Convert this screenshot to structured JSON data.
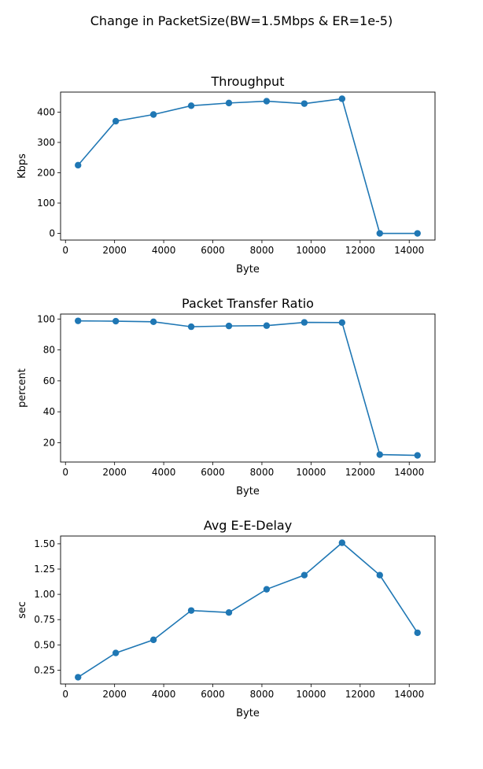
{
  "figure": {
    "title": "Change in PacketSize(BW=1.5Mbps & ER=1e-5)",
    "line_color": "#1f77b4"
  },
  "chart_data": [
    {
      "type": "line",
      "title": "Throughput",
      "xlabel": "Byte",
      "ylabel": "Kbps",
      "x": [
        512,
        2048,
        3584,
        5120,
        6656,
        8192,
        9728,
        11264,
        12800,
        14336
      ],
      "y": [
        225,
        370,
        392,
        421,
        430,
        436,
        428,
        444,
        0,
        0
      ],
      "xlim": [
        -200,
        15050
      ],
      "ylim": [
        -22,
        466
      ],
      "xticks": [
        0,
        2000,
        4000,
        6000,
        8000,
        10000,
        12000,
        14000
      ],
      "yticks": [
        0,
        100,
        200,
        300,
        400
      ],
      "grid": false,
      "marker": "circle"
    },
    {
      "type": "line",
      "title": "Packet Transfer Ratio",
      "xlabel": "Byte",
      "ylabel": "percent",
      "x": [
        512,
        2048,
        3584,
        5120,
        6656,
        8192,
        9728,
        11264,
        12800,
        14336
      ],
      "y": [
        98.8,
        98.6,
        98.2,
        95.0,
        95.5,
        95.7,
        97.8,
        97.7,
        12.3,
        11.8
      ],
      "xlim": [
        -200,
        15050
      ],
      "ylim": [
        7.5,
        103.2
      ],
      "xticks": [
        0,
        2000,
        4000,
        6000,
        8000,
        10000,
        12000,
        14000
      ],
      "yticks": [
        20,
        40,
        60,
        80,
        100
      ],
      "grid": false,
      "marker": "circle"
    },
    {
      "type": "line",
      "title": "Avg E-E-Delay",
      "xlabel": "Byte",
      "ylabel": "sec",
      "x": [
        512,
        2048,
        3584,
        5120,
        6656,
        8192,
        9728,
        11264,
        12800,
        14336
      ],
      "y": [
        0.18,
        0.42,
        0.55,
        0.84,
        0.82,
        1.05,
        1.19,
        1.51,
        1.19,
        0.62
      ],
      "xlim": [
        -200,
        15050
      ],
      "ylim": [
        0.113,
        1.577
      ],
      "xticks": [
        0,
        2000,
        4000,
        6000,
        8000,
        10000,
        12000,
        14000
      ],
      "yticks": [
        0.25,
        0.5,
        0.75,
        1.0,
        1.25,
        1.5
      ],
      "ytick_labels": [
        "0.25",
        "0.50",
        "0.75",
        "1.00",
        "1.25",
        "1.50"
      ],
      "grid": false,
      "marker": "circle"
    }
  ]
}
